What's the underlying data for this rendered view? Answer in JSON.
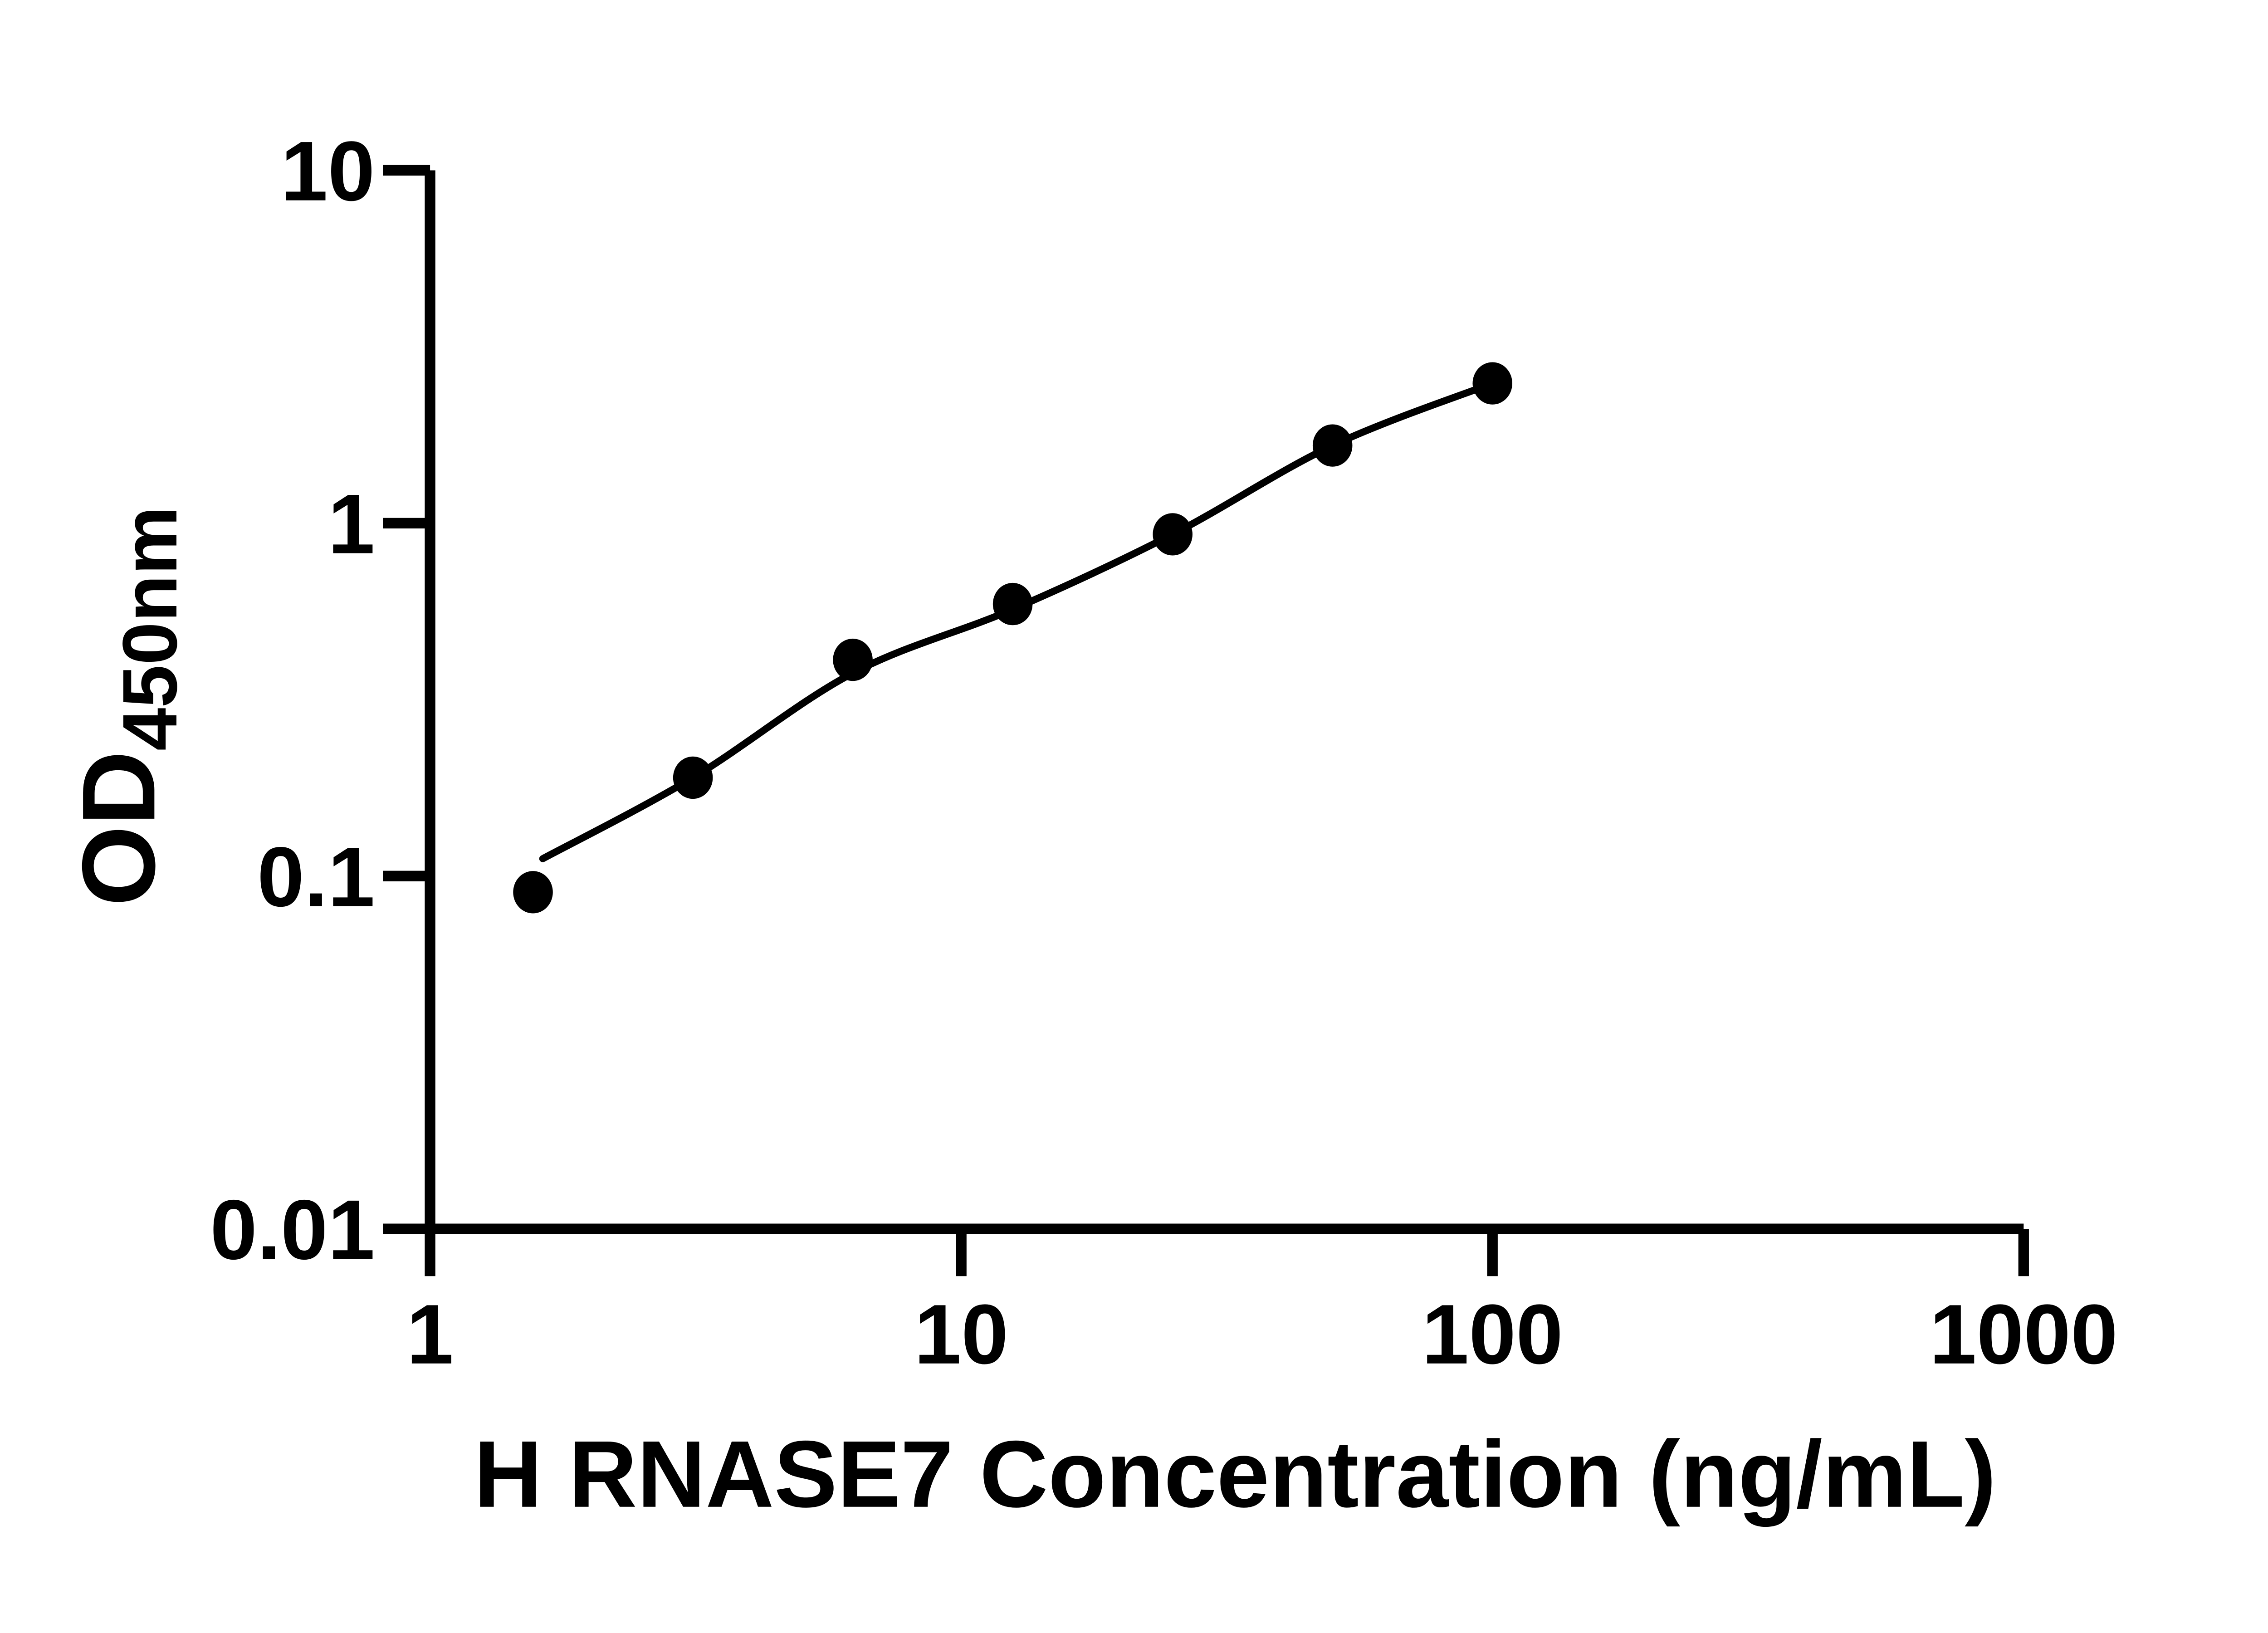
{
  "figure": {
    "background_color": "#ffffff",
    "ink_color": "#000000"
  },
  "chart_data": {
    "type": "scatter",
    "title": "",
    "xlabel": "H RNASE7 Concentration (ng/mL)",
    "ylabel_main": "OD",
    "ylabel_sub": "450nm",
    "x_scale": "log10",
    "y_scale": "log10",
    "xlim": [
      1,
      1000
    ],
    "ylim": [
      0.01,
      10
    ],
    "grid": false,
    "legend": null,
    "x_ticks": [
      1,
      10,
      100,
      1000
    ],
    "x_tick_labels": [
      "1",
      "10",
      "100",
      "1000"
    ],
    "y_ticks": [
      10,
      1,
      0.1,
      0.01
    ],
    "y_tick_labels": [
      "10",
      "1",
      "0.1",
      "0.01"
    ],
    "series": [
      {
        "name": "standard-points",
        "type": "scatter",
        "marker": "filled-circle",
        "color": "#000000",
        "x": [
          1.5625,
          3.125,
          6.25,
          12.5,
          25,
          50,
          100
        ],
        "y": [
          0.09,
          0.19,
          0.41,
          0.59,
          0.93,
          1.66,
          2.49
        ]
      },
      {
        "name": "fit-line",
        "type": "line",
        "color": "#000000",
        "x": [
          1.63,
          3.125,
          6.25,
          12.5,
          25,
          50,
          100
        ],
        "y": [
          0.112,
          0.19,
          0.376,
          0.57,
          0.93,
          1.66,
          2.49
        ]
      }
    ]
  }
}
